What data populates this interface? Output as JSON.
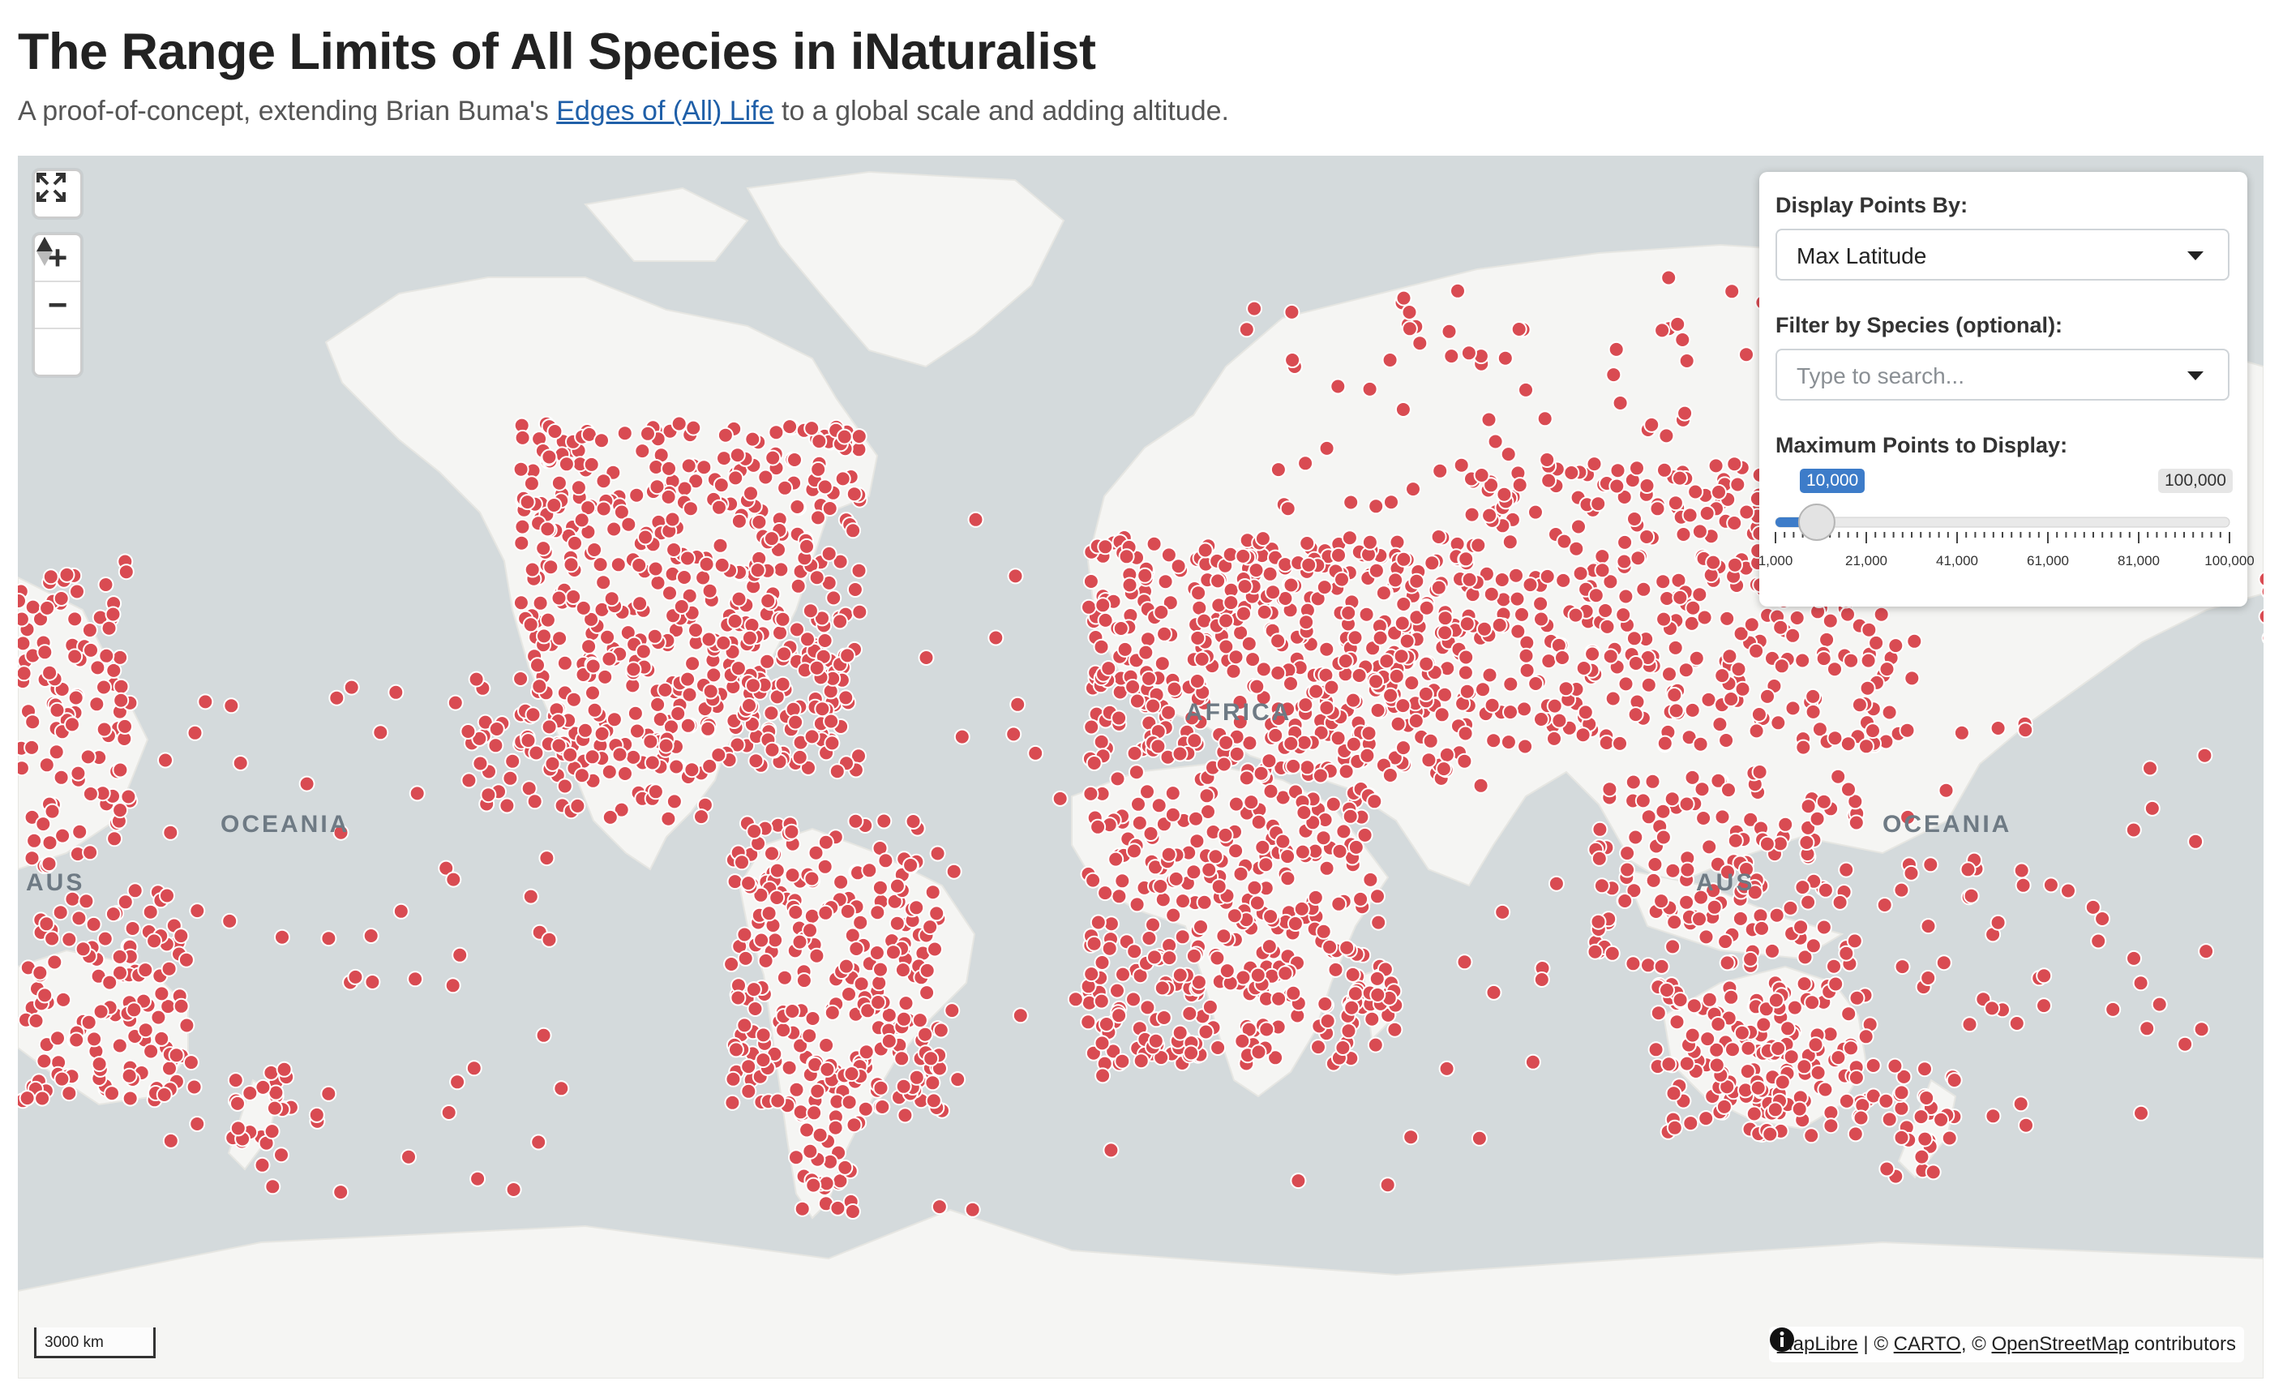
{
  "header": {
    "title": "The Range Limits of All Species in iNaturalist",
    "subtitle_before": "A proof-of-concept, extending Brian Buma's ",
    "subtitle_link": "Edges of (All) Life",
    "subtitle_after": " to a global scale and adding altitude."
  },
  "map_labels": {
    "oceania_left": "OCEANIA",
    "oceania_right": "OCEANIA",
    "africa": "AFRICA",
    "australia_left": "AUS",
    "australia_right": "AUS"
  },
  "controls": {
    "display_label": "Display Points By:",
    "display_value": "Max Latitude",
    "species_label": "Filter by Species (optional):",
    "species_placeholder": "Type to search...",
    "max_points_label": "Maximum Points to Display:",
    "slider": {
      "min": 1000,
      "max": 100000,
      "value": 10000,
      "value_label": "10,000",
      "max_label": "100,000",
      "ticks": [
        "1,000",
        "21,000",
        "41,000",
        "61,000",
        "81,000",
        "100,000"
      ]
    }
  },
  "scale_bar": "3000 km",
  "attribution": {
    "maplibre": "MapLibre",
    "sep1": " | © ",
    "carto": "CARTO",
    "sep2": ", © ",
    "osm": "OpenStreetMap",
    "suffix": " contributors"
  },
  "colors": {
    "point": "#d94b52",
    "land": "#f5f5f3",
    "water": "#d4dadc",
    "accent": "#3d7cc9"
  },
  "icons": [
    "fullscreen-icon",
    "zoom-in-icon",
    "zoom-out-icon",
    "compass-icon",
    "info-icon"
  ]
}
